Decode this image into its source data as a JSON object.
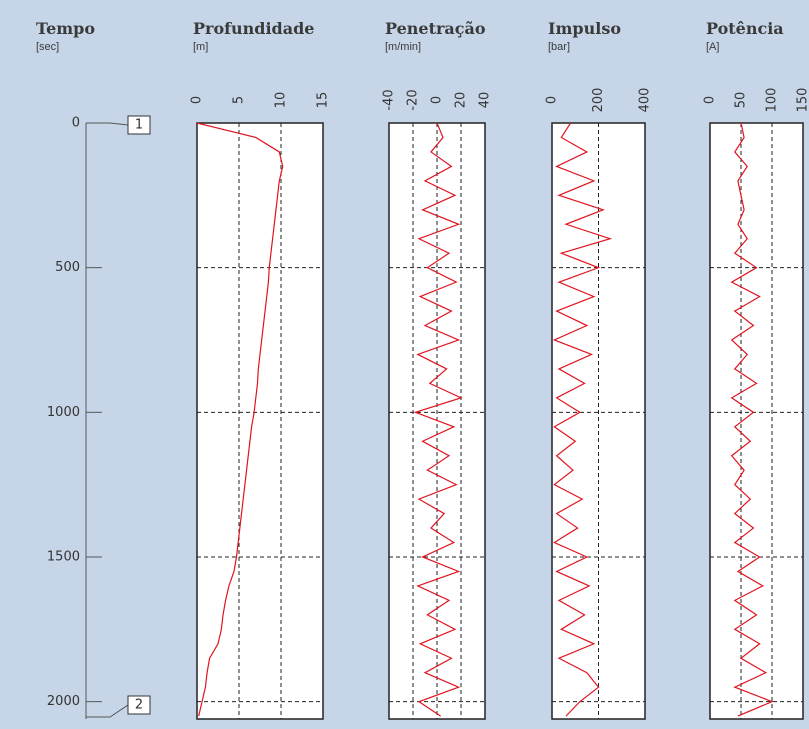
{
  "time_axis": {
    "title": "Tempo",
    "unit": "[sec]",
    "ylim": [
      0,
      2060
    ],
    "yticks": [
      0,
      500,
      1000,
      1500,
      2000
    ],
    "markers": [
      "1",
      "2"
    ]
  },
  "chart_data": [
    {
      "type": "line",
      "title": "Profundidade",
      "unit": "[m]",
      "color": "#e0141e",
      "xlim": [
        0,
        15
      ],
      "xticks": [
        0,
        5,
        10,
        15
      ],
      "y": [
        0,
        50,
        100,
        150,
        200,
        250,
        300,
        350,
        400,
        450,
        500,
        550,
        600,
        650,
        700,
        750,
        800,
        850,
        900,
        950,
        1000,
        1050,
        1100,
        1150,
        1200,
        1250,
        1300,
        1350,
        1400,
        1450,
        1500,
        1550,
        1600,
        1650,
        1700,
        1750,
        1800,
        1850,
        1900,
        1950,
        2000,
        2050
      ],
      "values": [
        0,
        7,
        9.8,
        10.2,
        9.8,
        9.6,
        9.4,
        9.2,
        9,
        8.8,
        8.6,
        8.5,
        8.3,
        8.1,
        7.9,
        7.7,
        7.5,
        7.3,
        7.2,
        7.0,
        6.8,
        6.5,
        6.3,
        6.1,
        5.9,
        5.7,
        5.5,
        5.3,
        5.1,
        4.9,
        4.7,
        4.4,
        3.8,
        3.4,
        3.1,
        2.9,
        2.5,
        1.5,
        1.2,
        1.0,
        0.6,
        0.2
      ]
    },
    {
      "type": "line",
      "title": "Penetração",
      "unit": "[m/min]",
      "color": "#e0141e",
      "xlim": [
        -40,
        40
      ],
      "xticks": [
        -40,
        -20,
        0,
        20,
        40
      ],
      "y": [
        0,
        50,
        100,
        150,
        200,
        250,
        300,
        350,
        400,
        450,
        500,
        550,
        600,
        650,
        700,
        750,
        800,
        850,
        900,
        950,
        1000,
        1050,
        1100,
        1150,
        1200,
        1250,
        1300,
        1350,
        1400,
        1450,
        1500,
        1550,
        1600,
        1650,
        1700,
        1750,
        1800,
        1850,
        1900,
        1950,
        2000,
        2050
      ],
      "values": [
        0,
        5,
        -5,
        12,
        -10,
        15,
        -12,
        18,
        -15,
        10,
        -8,
        16,
        -14,
        12,
        -10,
        18,
        -16,
        8,
        -6,
        20,
        -18,
        14,
        -12,
        10,
        -8,
        16,
        -15,
        6,
        -5,
        14,
        -12,
        18,
        -16,
        10,
        -8,
        15,
        -14,
        12,
        -10,
        18,
        -15,
        3
      ]
    },
    {
      "type": "line",
      "title": "Impulso",
      "unit": "[bar]",
      "color": "#e0141e",
      "xlim": [
        0,
        400
      ],
      "xticks": [
        0,
        200,
        400
      ],
      "y": [
        0,
        50,
        100,
        150,
        200,
        250,
        300,
        350,
        400,
        450,
        500,
        550,
        600,
        650,
        700,
        750,
        800,
        850,
        900,
        950,
        1000,
        1050,
        1100,
        1150,
        1200,
        1250,
        1300,
        1350,
        1400,
        1450,
        1500,
        1550,
        1600,
        1650,
        1700,
        1750,
        1800,
        1850,
        1900,
        1950,
        2000,
        2050
      ],
      "values": [
        80,
        40,
        150,
        20,
        180,
        30,
        220,
        60,
        250,
        40,
        200,
        30,
        180,
        20,
        150,
        10,
        170,
        30,
        140,
        20,
        120,
        10,
        100,
        20,
        90,
        10,
        130,
        20,
        110,
        10,
        150,
        20,
        160,
        30,
        140,
        40,
        180,
        30,
        150,
        200,
        120,
        60
      ]
    },
    {
      "type": "line",
      "title": "Potência",
      "unit": "[A]",
      "color": "#e0141e",
      "xlim": [
        0,
        150
      ],
      "xticks": [
        0,
        50,
        100,
        150
      ],
      "y": [
        0,
        50,
        100,
        150,
        200,
        250,
        300,
        350,
        400,
        450,
        500,
        550,
        600,
        650,
        700,
        750,
        800,
        850,
        900,
        950,
        1000,
        1050,
        1100,
        1150,
        1200,
        1250,
        1300,
        1350,
        1400,
        1450,
        1500,
        1550,
        1600,
        1650,
        1700,
        1750,
        1800,
        1850,
        1900,
        1950,
        2000,
        2050
      ],
      "values": [
        50,
        55,
        40,
        60,
        45,
        50,
        55,
        45,
        60,
        40,
        75,
        35,
        80,
        40,
        70,
        35,
        60,
        40,
        75,
        35,
        70,
        40,
        65,
        35,
        55,
        40,
        65,
        40,
        70,
        40,
        80,
        45,
        85,
        40,
        75,
        40,
        80,
        50,
        90,
        40,
        100,
        45
      ]
    }
  ]
}
